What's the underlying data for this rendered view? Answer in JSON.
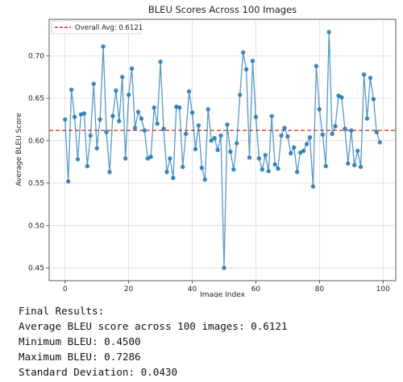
{
  "chart_data": {
    "type": "line",
    "title": "BLEU Scores Across 100 Images",
    "xlabel": "Image Index",
    "ylabel": "Average BLEU Score",
    "xlim": [
      -5,
      104
    ],
    "ylim": [
      0.435,
      0.743
    ],
    "x_ticks": [
      0,
      20,
      40,
      60,
      80,
      100
    ],
    "y_ticks": [
      0.45,
      0.5,
      0.55,
      0.6,
      0.65,
      0.7
    ],
    "y_tick_labels": [
      "0.45",
      "0.50",
      "0.55",
      "0.60",
      "0.65",
      "0.70"
    ],
    "grid": true,
    "legend_position": "top-left",
    "colors": {
      "series": "#1f77b4",
      "reference": "#d62728"
    },
    "series": [
      {
        "x": [
          0,
          1,
          2,
          3,
          4,
          5,
          6,
          7,
          8,
          9,
          10,
          11,
          12,
          13,
          14,
          15,
          16,
          17,
          18,
          19,
          20,
          21,
          22,
          23,
          24,
          25,
          26,
          27,
          28,
          29,
          30,
          31,
          32,
          33,
          34,
          35,
          36,
          37,
          38,
          39,
          40,
          41,
          42,
          43,
          44,
          45,
          46,
          47,
          48,
          49,
          50,
          51,
          52,
          53,
          54,
          55,
          56,
          57,
          58,
          59,
          60,
          61,
          62,
          63,
          64,
          65,
          66,
          67,
          68,
          69,
          70,
          71,
          72,
          73,
          74,
          75,
          76,
          77,
          78,
          79,
          80,
          81,
          82,
          83,
          84,
          85,
          86,
          87,
          88,
          89,
          90,
          91,
          92,
          93,
          94,
          95,
          96,
          97,
          98,
          99
        ],
        "values": [
          0.625,
          0.552,
          0.66,
          0.628,
          0.578,
          0.631,
          0.632,
          0.57,
          0.606,
          0.667,
          0.591,
          0.625,
          0.711,
          0.61,
          0.563,
          0.629,
          0.659,
          0.623,
          0.675,
          0.579,
          0.654,
          0.685,
          0.615,
          0.634,
          0.626,
          0.612,
          0.579,
          0.581,
          0.639,
          0.62,
          0.693,
          0.614,
          0.563,
          0.579,
          0.556,
          0.64,
          0.639,
          0.569,
          0.608,
          0.658,
          0.633,
          0.59,
          0.618,
          0.568,
          0.554,
          0.637,
          0.6,
          0.603,
          0.589,
          0.606,
          0.45,
          0.619,
          0.587,
          0.566,
          0.597,
          0.654,
          0.704,
          0.684,
          0.58,
          0.694,
          0.628,
          0.579,
          0.566,
          0.583,
          0.564,
          0.629,
          0.572,
          0.567,
          0.606,
          0.615,
          0.605,
          0.585,
          0.592,
          0.563,
          0.586,
          0.588,
          0.596,
          0.604,
          0.546,
          0.688,
          0.637,
          0.607,
          0.57,
          0.728,
          0.608,
          0.617,
          0.653,
          0.651,
          0.614,
          0.573,
          0.612,
          0.571,
          0.588,
          0.569,
          0.678,
          0.626,
          0.674,
          0.649,
          0.61,
          0.598
        ]
      }
    ],
    "reference_line": {
      "label": "Overall Avg: 0.6121",
      "value": 0.6121
    }
  },
  "results": {
    "heading": "Final Results:",
    "average": "Average BLEU score across 100 images: 0.6121",
    "minimum": "Minimum BLEU: 0.4500",
    "maximum": "Maximum BLEU: 0.7286",
    "std": "Standard Deviation: 0.0430"
  }
}
